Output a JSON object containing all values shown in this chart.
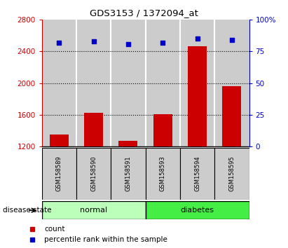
{
  "title": "GDS3153 / 1372094_at",
  "samples": [
    "GSM158589",
    "GSM158590",
    "GSM158591",
    "GSM158593",
    "GSM158594",
    "GSM158595"
  ],
  "counts": [
    1350,
    1620,
    1270,
    1610,
    2470,
    1960
  ],
  "percentiles": [
    82,
    83,
    81,
    82,
    85,
    84
  ],
  "groups": [
    "normal",
    "normal",
    "normal",
    "diabetes",
    "diabetes",
    "diabetes"
  ],
  "normal_color": "#bbffbb",
  "diabetes_color": "#44ee44",
  "bar_color": "#cc0000",
  "dot_color": "#0000cc",
  "ylim_left": [
    1200,
    2800
  ],
  "yticks_left": [
    1200,
    1600,
    2000,
    2400,
    2800
  ],
  "ylim_right": [
    0,
    100
  ],
  "yticks_right": [
    0,
    25,
    50,
    75,
    100
  ],
  "ylabel_right_labels": [
    "0",
    "25",
    "50",
    "75",
    "100%"
  ],
  "plot_bg_color": "#cccccc",
  "cell_separator_color": "#ffffff"
}
